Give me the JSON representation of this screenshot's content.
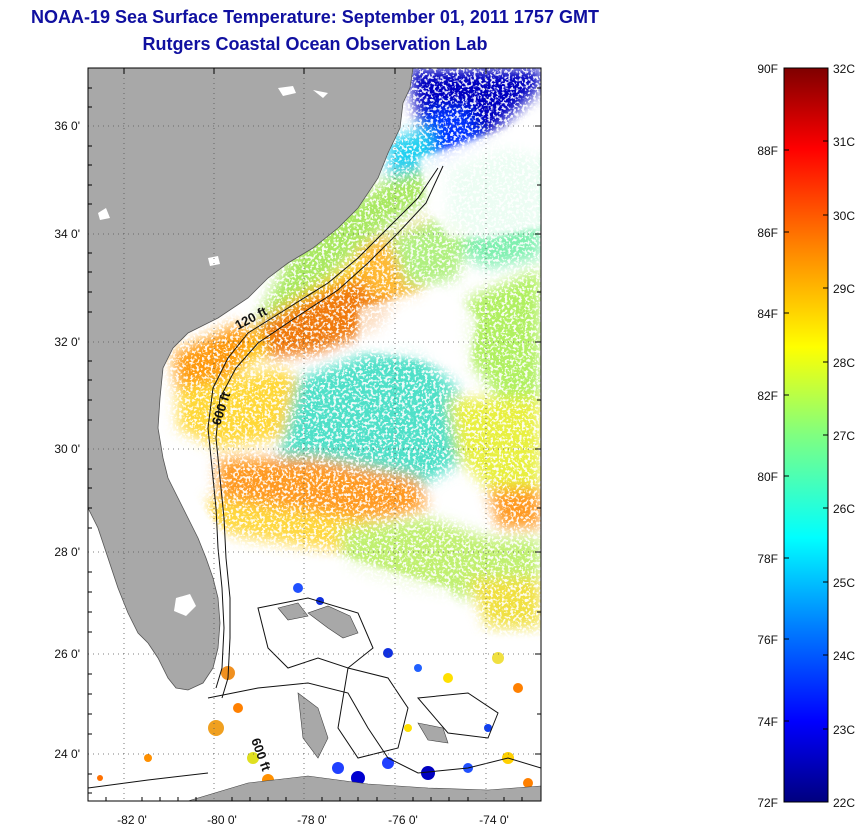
{
  "title": {
    "line1": "NOAA-19 Sea Surface Temperature:  September 01, 2011 1757 GMT",
    "line2": "Rutgers Coastal Ocean Observation Lab"
  },
  "map": {
    "lat_ticks": [
      "36 0'",
      "34 0'",
      "32 0'",
      "30 0'",
      "28 0'",
      "26 0'",
      "24 0'"
    ],
    "lon_ticks": [
      "-82 0'",
      "-80 0'",
      "-78 0'",
      "-76 0'",
      "-74 0'"
    ],
    "contour_labels": [
      "120 ft",
      "600 ft",
      "600 ft"
    ],
    "land_color": "#a8a8a8"
  },
  "colorbar": {
    "fahrenheit_labels": [
      "90F",
      "88F",
      "86F",
      "84F",
      "82F",
      "80F",
      "78F",
      "76F",
      "74F",
      "72F"
    ],
    "celsius_labels": [
      "32C",
      "31C",
      "30C",
      "29C",
      "28C",
      "27C",
      "26C",
      "25C",
      "24C",
      "23C",
      "22C"
    ],
    "range_celsius": [
      22,
      32
    ],
    "colors": [
      "#00007f",
      "#0000ff",
      "#0080ff",
      "#00ffff",
      "#80ff80",
      "#ffff00",
      "#ff8000",
      "#ff0000",
      "#7f0000"
    ]
  }
}
